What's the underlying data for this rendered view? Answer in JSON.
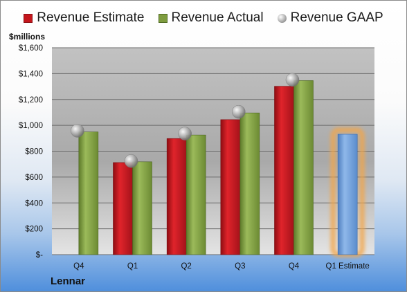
{
  "chart_data": {
    "type": "bar",
    "categories": [
      "Q4",
      "Q1",
      "Q2",
      "Q3",
      "Q4",
      "Q1 Estimate"
    ],
    "series": [
      {
        "name": "Revenue Estimate",
        "type": "bar",
        "color": "#c4161c",
        "values": [
          null,
          712,
          898,
          1044,
          1302,
          null
        ]
      },
      {
        "name": "Revenue Actual",
        "type": "bar",
        "color": "#7e9c3f",
        "values": [
          949,
          718,
          925,
          1096,
          1346,
          931
        ]
      },
      {
        "name": "Revenue GAAP",
        "type": "scatter",
        "color": "#9a9a9a",
        "values": [
          958,
          724,
          936,
          1104,
          1352,
          null
        ]
      }
    ],
    "highlight": {
      "category": "Q1 Estimate",
      "color": "#6f9fd8",
      "glow": "#f3a64a"
    },
    "ylabel": "$millions",
    "ylim": [
      0,
      1600
    ],
    "yticks": [
      {
        "value": 0,
        "label": "$-"
      },
      {
        "value": 200,
        "label": "$200"
      },
      {
        "value": 400,
        "label": "$400"
      },
      {
        "value": 600,
        "label": "$600"
      },
      {
        "value": 800,
        "label": "$800"
      },
      {
        "value": 1000,
        "label": "$1,000"
      },
      {
        "value": 1200,
        "label": "$1,200"
      },
      {
        "value": 1400,
        "label": "$1,400"
      },
      {
        "value": 1600,
        "label": "$1,600"
      }
    ],
    "grid": true,
    "legend_position": "top",
    "company": "Lennar"
  }
}
